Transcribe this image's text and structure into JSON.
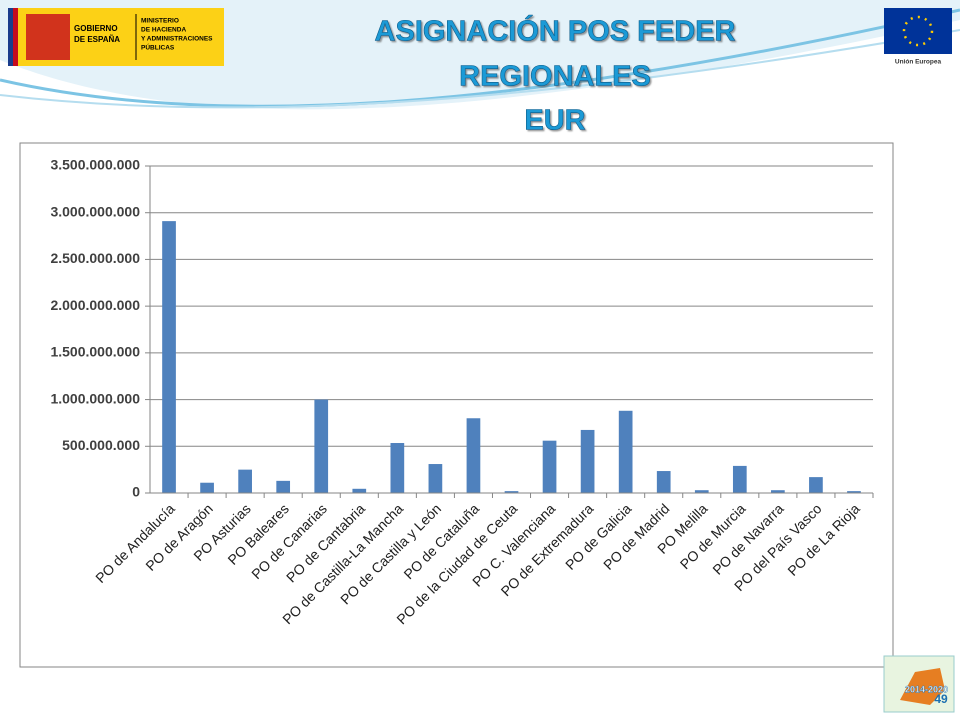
{
  "slide": {
    "title_lines": [
      "ASIGNACIÓN POS FEDER",
      "REGIONALES",
      "EUR"
    ],
    "logo_left": {
      "country": [
        "GOBIERNO",
        "DE ESPAÑA"
      ],
      "ministry": [
        "MINISTERIO",
        "DE HACIENDA",
        "Y ADMINISTRACIONES",
        "PÚBLICAS"
      ]
    },
    "logo_right": "Unión Europea",
    "badge": "2014-2020",
    "page_number": 49
  },
  "chart_data": {
    "type": "bar",
    "categories": [
      "PO de Andalucía",
      "PO de Aragón",
      "PO Asturias",
      "PO Baleares",
      "PO de Canarias",
      "PO de Cantabria",
      "PO de Castilla-La Mancha",
      "PO de Castilla y León",
      "PO de Cataluña",
      "PO de la Ciudad de Ceuta",
      "PO C. Valenciana",
      "PO de Extremadura",
      "PO de Galicia",
      "PO de Madrid",
      "PO Melilla",
      "PO de Murcia",
      "PO de Navarra",
      "PO del País Vasco",
      "PO de La Rioja"
    ],
    "values": [
      2910000000,
      110000000,
      250000000,
      130000000,
      1000000000,
      45000000,
      535000000,
      310000000,
      800000000,
      20000000,
      560000000,
      675000000,
      880000000,
      235000000,
      30000000,
      290000000,
      30000000,
      170000000,
      20000000
    ],
    "color": "#4f81bd",
    "ylim": [
      0,
      3500000000
    ],
    "yticks": [
      0,
      {
        "value": 500000000,
        "label": "500.000.000"
      },
      {
        "value": 1000000000,
        "label": "1.000.000.000"
      },
      {
        "value": 1500000000,
        "label": "1.500.000.000"
      },
      {
        "value": 2000000000,
        "label": "2.000.000.000"
      },
      {
        "value": 2500000000,
        "label": "2.500.000.000"
      },
      {
        "value": 3000000000,
        "label": "3.000.000.000"
      },
      {
        "value": 3500000000,
        "label": "3.500.000.000"
      }
    ],
    "grid": true
  }
}
